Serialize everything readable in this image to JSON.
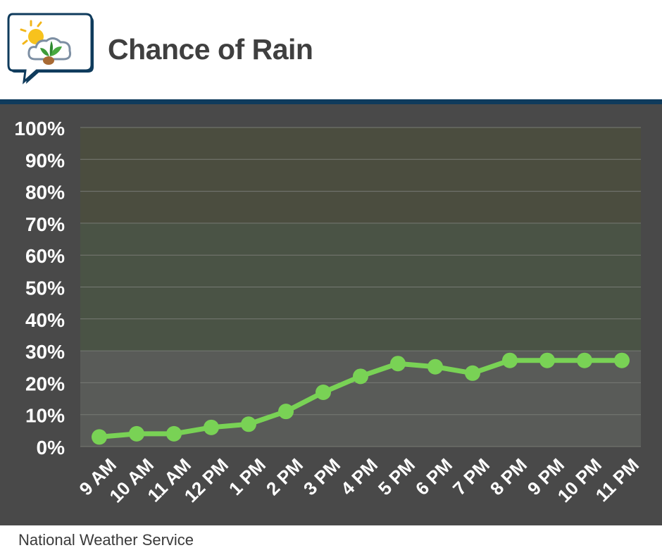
{
  "header": {
    "title": "Chance of Rain"
  },
  "footer": {
    "source": "National Weather Service"
  },
  "colors": {
    "line": "#79d255",
    "header_rule": "#0f3b5c",
    "panel_bg": "#494949",
    "band_top": "#4b4d3f",
    "band_middle": "#4a5345",
    "band_bottom": "#595b58"
  },
  "icons": {
    "logo": "weather-sun-cloud-plant-logo-icon"
  },
  "chart_data": {
    "type": "line",
    "title": "Chance of Rain",
    "xlabel": "",
    "ylabel": "",
    "categories": [
      "9 AM",
      "10 AM",
      "11 AM",
      "12 PM",
      "1 PM",
      "2 PM",
      "3 PM",
      "4 PM",
      "5 PM",
      "6 PM",
      "7 PM",
      "8 PM",
      "9 PM",
      "10 PM",
      "11 PM"
    ],
    "series": [
      {
        "name": "Chance of Rain",
        "values": [
          3,
          4,
          4,
          6,
          7,
          11,
          17,
          22,
          26,
          25,
          23,
          27,
          27,
          27,
          27
        ]
      }
    ],
    "ylim": [
      0,
      100
    ],
    "yticks": [
      0,
      10,
      20,
      30,
      40,
      50,
      60,
      70,
      80,
      90,
      100
    ],
    "ytick_labels": [
      "0%",
      "10%",
      "20%",
      "30%",
      "40%",
      "50%",
      "60%",
      "70%",
      "80%",
      "90%",
      "100%"
    ],
    "background_bands": [
      {
        "from": 0,
        "to": 30,
        "color": "#595b58"
      },
      {
        "from": 30,
        "to": 70,
        "color": "#4a5345"
      },
      {
        "from": 70,
        "to": 100,
        "color": "#4b4d3f"
      }
    ],
    "grid": true,
    "legend": "none"
  }
}
